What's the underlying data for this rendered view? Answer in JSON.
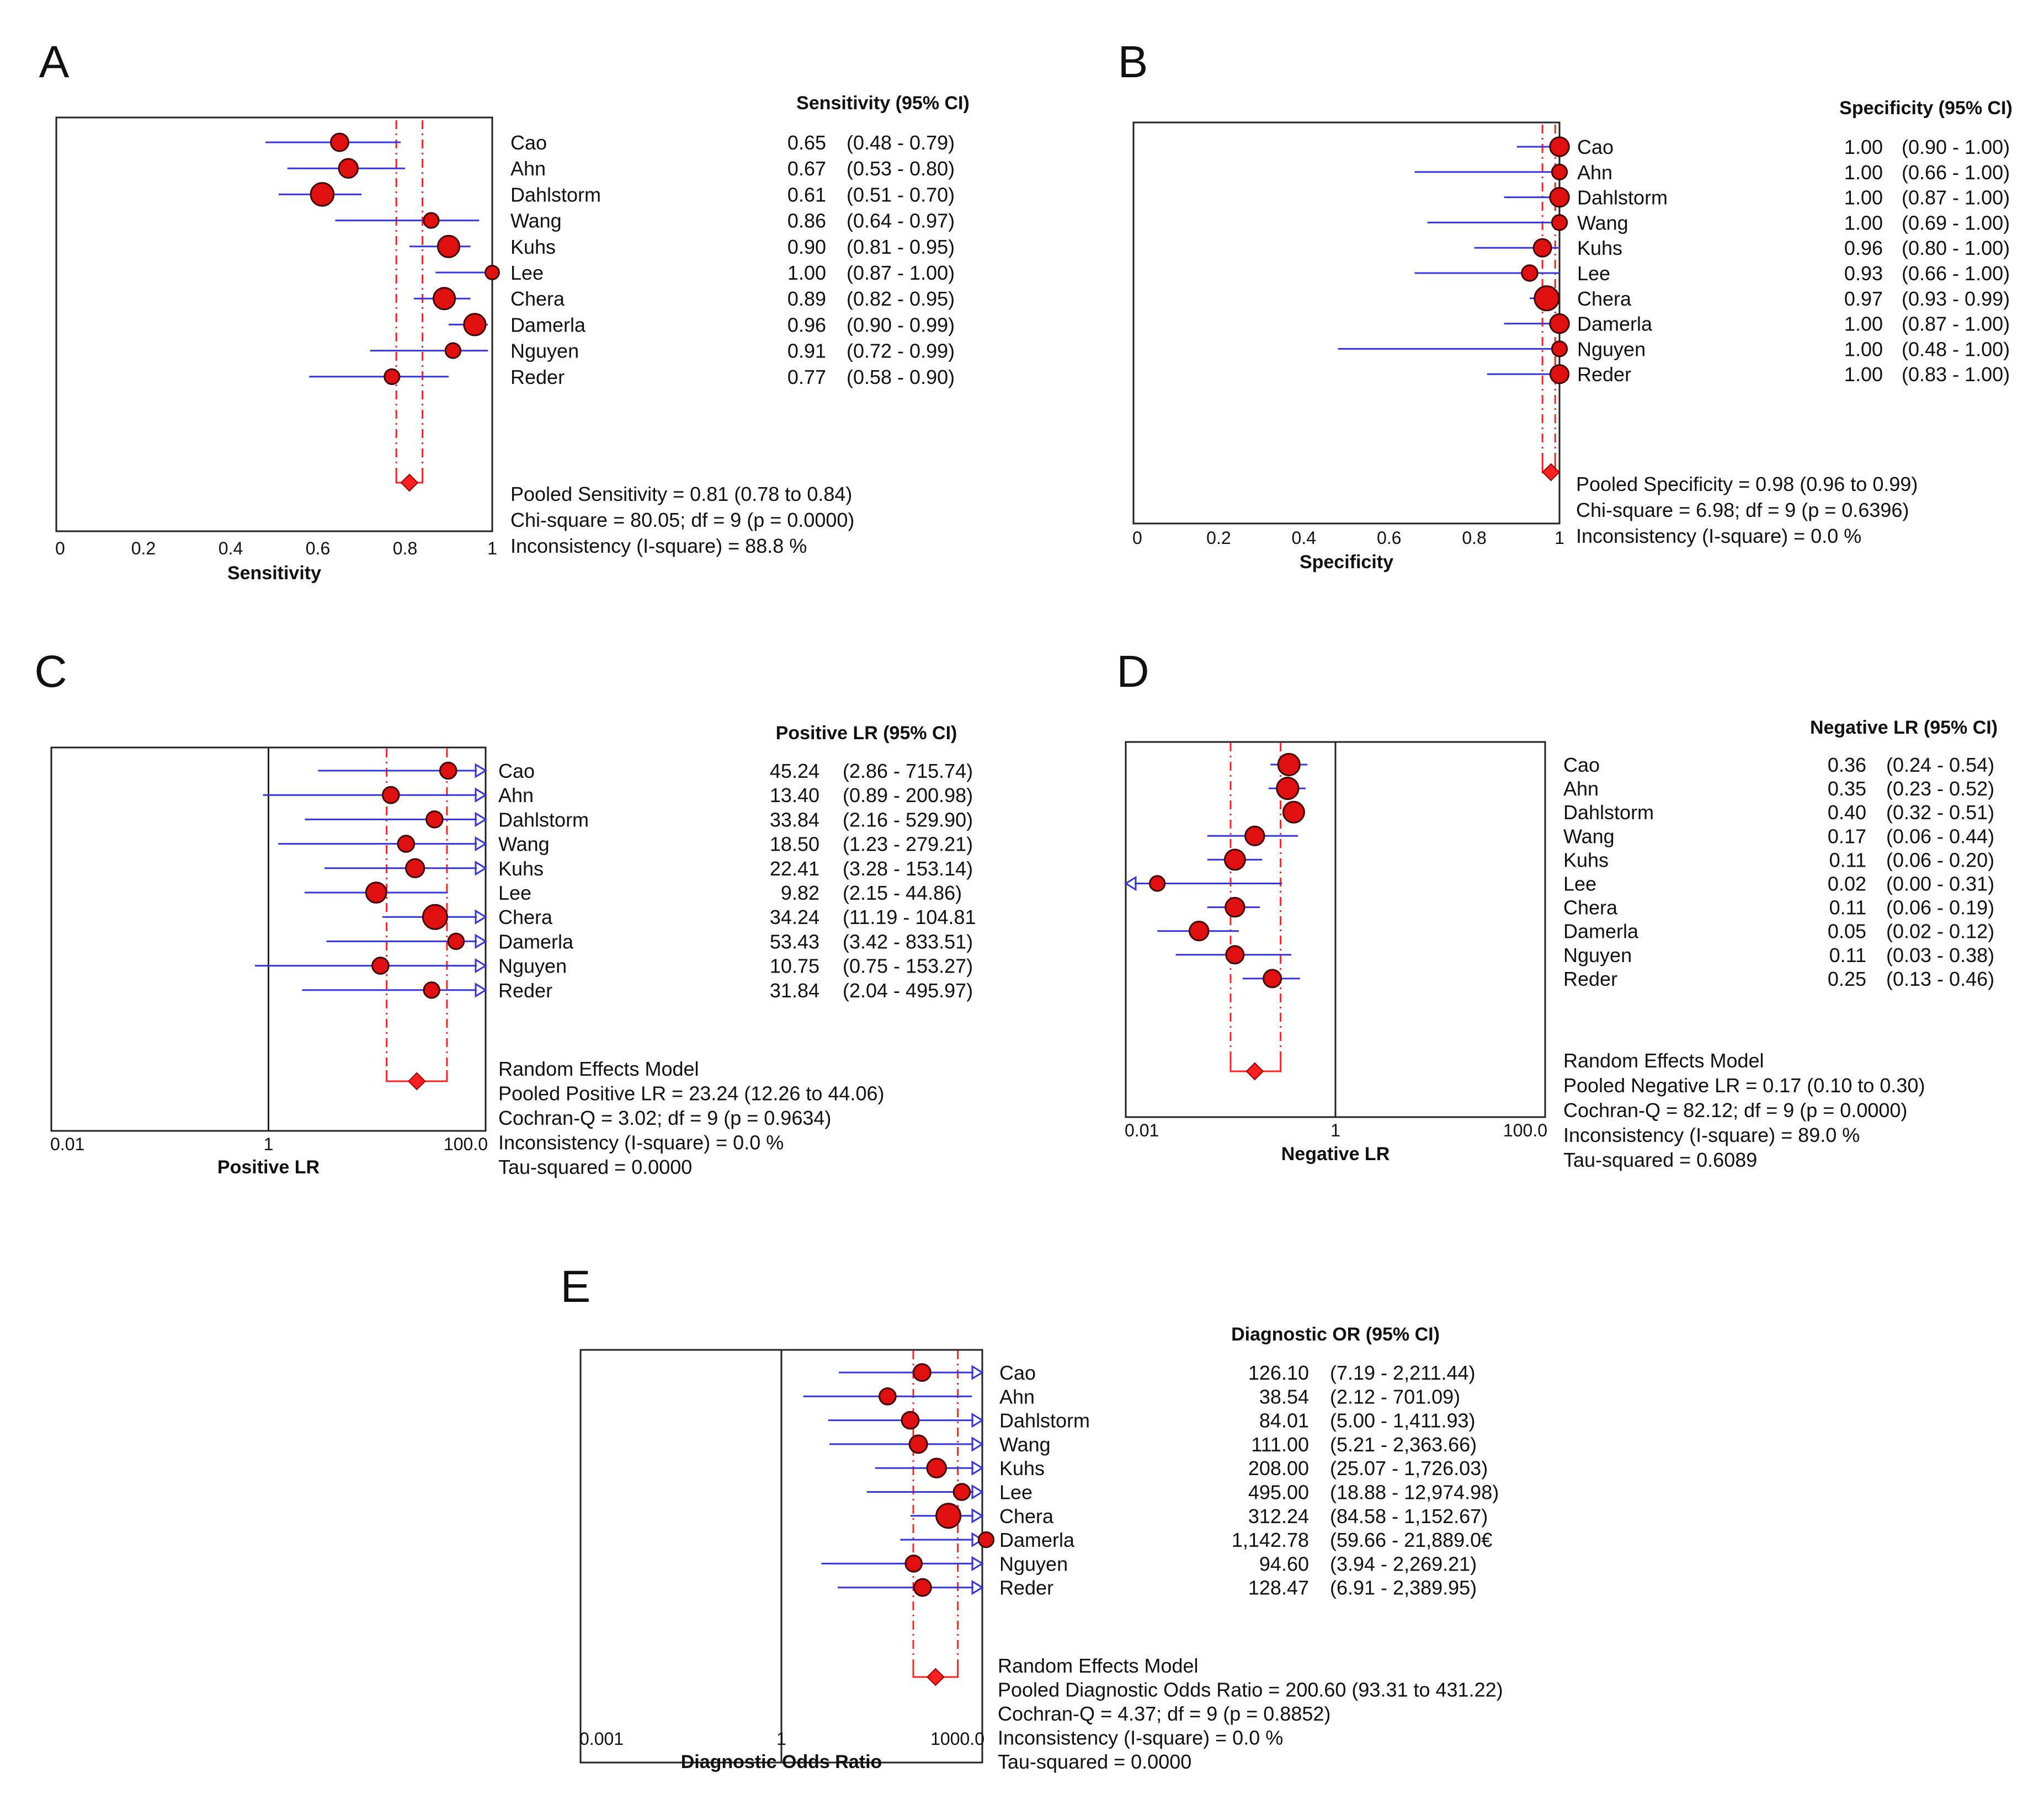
{
  "colors": {
    "ci": "#3535e0",
    "point": "#e01010",
    "pooled": "#ff2020",
    "frame": "#222222"
  },
  "studies": [
    "Cao",
    "Ahn",
    "Dahlstorm",
    "Wang",
    "Kuhs",
    "Lee",
    "Chera",
    "Damerla",
    "Nguyen",
    "Reder"
  ],
  "chart_data": [
    {
      "panel": "A",
      "type": "forest",
      "scale": "linear",
      "xlim": [
        0,
        1
      ],
      "xticks": [
        0,
        0.2,
        0.4,
        0.6,
        0.8,
        1
      ],
      "xtick_labels": [
        "0",
        "0.2",
        "0.4",
        "0.6",
        "0.8",
        "1"
      ],
      "xlabel": "Sensitivity",
      "header": "Sensitivity (95% CI)",
      "estimates": [
        0.65,
        0.67,
        0.61,
        0.86,
        0.9,
        1.0,
        0.89,
        0.96,
        0.91,
        0.77
      ],
      "lower": [
        0.48,
        0.53,
        0.51,
        0.64,
        0.81,
        0.87,
        0.82,
        0.9,
        0.72,
        0.58
      ],
      "upper": [
        0.79,
        0.8,
        0.7,
        0.97,
        0.95,
        1.0,
        0.95,
        0.99,
        0.99,
        0.9
      ],
      "weights": [
        0.5,
        0.6,
        0.9,
        0.3,
        0.8,
        0.2,
        0.8,
        0.8,
        0.3,
        0.3
      ],
      "value_texts": [
        "0.65",
        "0.67",
        "0.61",
        "0.86",
        "0.90",
        "1.00",
        "0.89",
        "0.96",
        "0.91",
        "0.77"
      ],
      "ci_texts": [
        "(0.48 - 0.79)",
        "(0.53 - 0.80)",
        "(0.51 - 0.70)",
        "(0.64 - 0.97)",
        "(0.81 - 0.95)",
        "(0.87 - 1.00)",
        "(0.82 - 0.95)",
        "(0.90 - 0.99)",
        "(0.72 - 0.99)",
        "(0.58 - 0.90)"
      ],
      "pooled": {
        "estimate": 0.81,
        "lower": 0.78,
        "upper": 0.84
      },
      "summary": [
        "Pooled Sensitivity = 0.81 (0.78 to 0.84)",
        "Chi-square = 80.05; df =  9 (p = 0.0000)",
        "Inconsistency (I-square) = 88.8 %"
      ]
    },
    {
      "panel": "B",
      "type": "forest",
      "scale": "linear",
      "xlim": [
        0,
        1
      ],
      "xticks": [
        0,
        0.2,
        0.4,
        0.6,
        0.8,
        1
      ],
      "xtick_labels": [
        "0",
        "0.2",
        "0.4",
        "0.6",
        "0.8",
        "1"
      ],
      "xlabel": "Specificity",
      "header": "Specificity (95% CI)",
      "estimates": [
        1.0,
        1.0,
        1.0,
        1.0,
        0.96,
        0.93,
        0.97,
        1.0,
        1.0,
        1.0
      ],
      "lower": [
        0.9,
        0.66,
        0.87,
        0.69,
        0.8,
        0.66,
        0.93,
        0.87,
        0.48,
        0.83
      ],
      "upper": [
        1.0,
        1.0,
        1.0,
        1.0,
        1.0,
        1.0,
        0.99,
        1.0,
        1.0,
        1.0
      ],
      "weights": [
        0.6,
        0.3,
        0.6,
        0.3,
        0.5,
        0.35,
        1.0,
        0.6,
        0.3,
        0.55
      ],
      "value_texts": [
        "1.00",
        "1.00",
        "1.00",
        "1.00",
        "0.96",
        "0.93",
        "0.97",
        "1.00",
        "1.00",
        "1.00"
      ],
      "ci_texts": [
        "(0.90 - 1.00)",
        "(0.66 - 1.00)",
        "(0.87 - 1.00)",
        "(0.69 - 1.00)",
        "(0.80 - 1.00)",
        "(0.66 - 1.00)",
        "(0.93 - 0.99)",
        "(0.87 - 1.00)",
        "(0.48 - 1.00)",
        "(0.83 - 1.00)"
      ],
      "pooled": {
        "estimate": 0.98,
        "lower": 0.96,
        "upper": 0.99
      },
      "summary": [
        "Pooled Specificity = 0.98 (0.96 to 0.99)",
        "Chi-square = 6.98; df =  9 (p = 0.6396)",
        "Inconsistency (I-square) = 0.0 %"
      ]
    },
    {
      "panel": "C",
      "type": "forest",
      "scale": "log",
      "xlim": [
        0.01,
        100
      ],
      "xticks": [
        0.01,
        1,
        100
      ],
      "xtick_labels": [
        "0.01",
        "1",
        "100.0"
      ],
      "refline": 1,
      "xlabel": "Positive LR",
      "header": "Positive LR (95% CI)",
      "estimates": [
        45.24,
        13.4,
        33.84,
        18.5,
        22.41,
        9.82,
        34.24,
        53.43,
        10.75,
        31.84
      ],
      "lower": [
        2.86,
        0.89,
        2.16,
        1.23,
        3.28,
        2.15,
        11.19,
        3.42,
        0.75,
        2.04
      ],
      "upper": [
        715.74,
        200.98,
        529.9,
        279.21,
        153.14,
        44.86,
        104.81,
        833.51,
        153.27,
        495.97
      ],
      "weights": [
        0.4,
        0.4,
        0.4,
        0.4,
        0.55,
        0.7,
        1.0,
        0.35,
        0.4,
        0.35
      ],
      "value_texts": [
        "45.24",
        "13.40",
        "33.84",
        "18.50",
        "22.41",
        "9.82",
        "34.24",
        "53.43",
        "10.75",
        "31.84"
      ],
      "ci_texts": [
        "(2.86 - 715.74)",
        "(0.89 - 200.98)",
        "(2.16 - 529.90)",
        "(1.23 - 279.21)",
        "(3.28 - 153.14)",
        "(2.15 - 44.86)",
        "(11.19 - 104.81",
        "(3.42 - 833.51)",
        "(0.75 - 153.27)",
        "(2.04 - 495.97)"
      ],
      "pooled": {
        "estimate": 23.24,
        "lower": 12.26,
        "upper": 44.06
      },
      "summary": [
        "Random Effects Model",
        "Pooled Positive LR = 23.24 (12.26 to 44.06)",
        "Cochran-Q = 3.02; df =  9 (p = 0.9634)",
        "Inconsistency (I-square) = 0.0 %",
        "Tau-squared = 0.0000"
      ]
    },
    {
      "panel": "D",
      "type": "forest",
      "scale": "log",
      "xlim": [
        0.01,
        100
      ],
      "xticks": [
        0.01,
        1,
        100
      ],
      "xtick_labels": [
        "0.01",
        "1",
        "100.0"
      ],
      "refline": 1,
      "xlabel": "Negative LR",
      "header": "Negative LR (95% CI)",
      "estimates": [
        0.36,
        0.35,
        0.4,
        0.17,
        0.11,
        0.02,
        0.11,
        0.05,
        0.11,
        0.25
      ],
      "lower": [
        0.24,
        0.23,
        0.32,
        0.06,
        0.06,
        0.0,
        0.06,
        0.02,
        0.03,
        0.13
      ],
      "upper": [
        0.54,
        0.52,
        0.51,
        0.44,
        0.2,
        0.31,
        0.19,
        0.12,
        0.38,
        0.46
      ],
      "weights": [
        0.8,
        0.8,
        0.75,
        0.6,
        0.7,
        0.3,
        0.6,
        0.6,
        0.5,
        0.5
      ],
      "value_texts": [
        "0.36",
        "0.35",
        "0.40",
        "0.17",
        "0.11",
        "0.02",
        "0.11",
        "0.05",
        "0.11",
        "0.25"
      ],
      "ci_texts": [
        "(0.24 - 0.54)",
        "(0.23 - 0.52)",
        "(0.32 - 0.51)",
        "(0.06 - 0.44)",
        "(0.06 - 0.20)",
        "(0.00 - 0.31)",
        "(0.06 - 0.19)",
        "(0.02 - 0.12)",
        "(0.03 - 0.38)",
        "(0.13 - 0.46)"
      ],
      "pooled": {
        "estimate": 0.17,
        "lower": 0.1,
        "upper": 0.3
      },
      "summary": [
        "Random Effects Model",
        "Pooled Negative LR = 0.17 (0.10 to 0.30)",
        "Cochran-Q = 82.12; df =  9 (p = 0.0000)",
        "Inconsistency (I-square) = 89.0 %",
        "Tau-squared = 0.6089"
      ]
    },
    {
      "panel": "E",
      "type": "forest",
      "scale": "log",
      "xlim": [
        0.001,
        1000
      ],
      "xticks": [
        0.001,
        1,
        1000
      ],
      "xtick_labels": [
        "0.001",
        "1",
        "1000.0"
      ],
      "refline": 1,
      "xlabel": "Diagnostic Odds Ratio",
      "header": "Diagnostic OR (95% CI)",
      "estimates": [
        126.1,
        38.54,
        84.01,
        111.0,
        208.0,
        495.0,
        312.24,
        1142.78,
        94.6,
        128.47
      ],
      "lower": [
        7.19,
        2.12,
        5.0,
        5.21,
        25.07,
        18.88,
        84.58,
        59.66,
        3.94,
        6.91
      ],
      "upper": [
        2211.44,
        701.09,
        1411.93,
        2363.66,
        1726.03,
        12974.98,
        1152.67,
        21889.06,
        2269.21,
        2389.95
      ],
      "weights": [
        0.45,
        0.4,
        0.45,
        0.5,
        0.6,
        0.4,
        1.0,
        0.3,
        0.4,
        0.45
      ],
      "value_texts": [
        "126.10",
        "38.54",
        "84.01",
        "111.00",
        "208.00",
        "495.00",
        "312.24",
        "1,142.78",
        "94.60",
        "128.47"
      ],
      "ci_texts": [
        "(7.19 - 2,211.44)",
        "(2.12 - 701.09)",
        "(5.00 - 1,411.93)",
        "(5.21 - 2,363.66)",
        "(25.07 - 1,726.03)",
        "(18.88 - 12,974.98)",
        "(84.58 - 1,152.67)",
        "(59.66 - 21,889.0€",
        "(3.94 - 2,269.21)",
        "(6.91 - 2,389.95)"
      ],
      "pooled": {
        "estimate": 200.6,
        "lower": 93.31,
        "upper": 431.22
      },
      "summary": [
        "Random Effects Model",
        "Pooled Diagnostic Odds Ratio = 200.60 (93.31 to 431.22)",
        "Cochran-Q = 4.37; df =  9 (p = 0.8852)",
        "Inconsistency (I-square) = 0.0 %",
        "Tau-squared = 0.0000"
      ]
    }
  ]
}
